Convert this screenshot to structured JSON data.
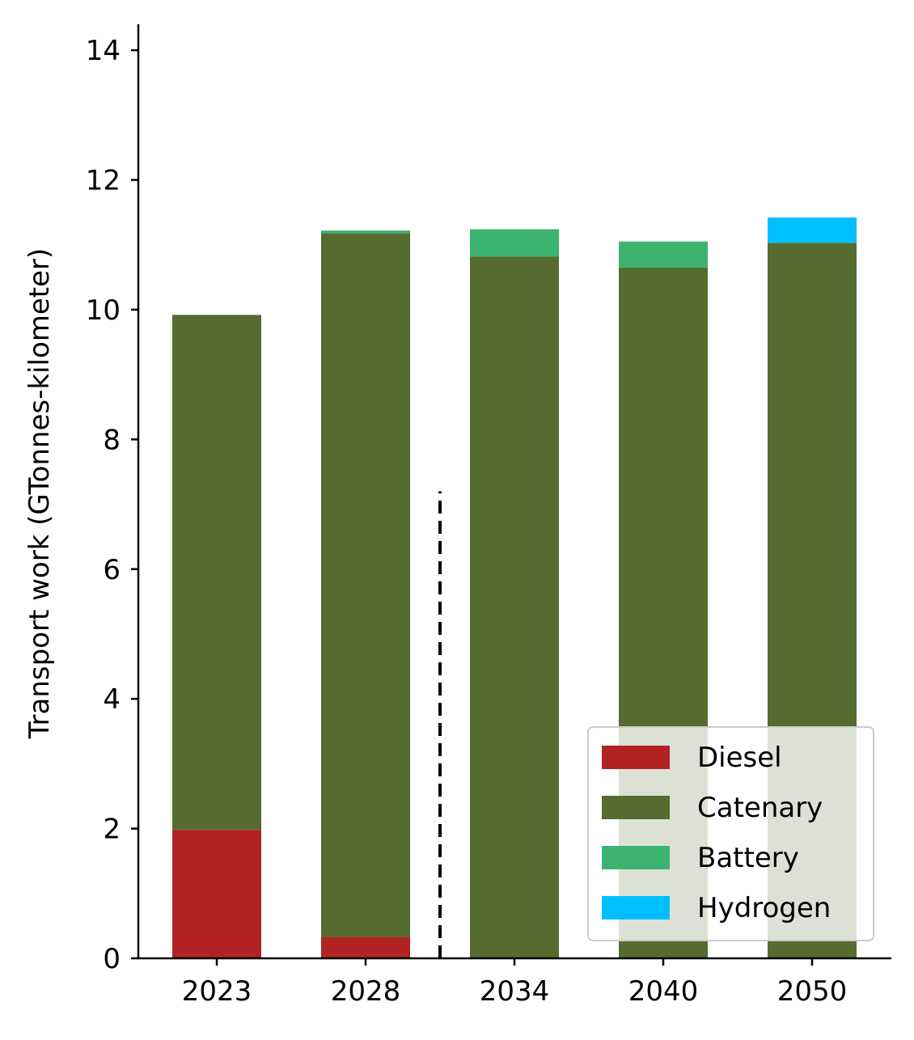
{
  "chart_data": {
    "type": "bar",
    "stacked": true,
    "categories": [
      "2023",
      "2028",
      "2034",
      "2040",
      "2050"
    ],
    "series": [
      {
        "name": "Diesel",
        "color": "#b22222",
        "values": [
          1.98,
          0.33,
          0.0,
          0.0,
          0.0
        ]
      },
      {
        "name": "Catenary",
        "color": "#556b2f",
        "values": [
          7.94,
          10.85,
          10.82,
          10.65,
          11.03
        ]
      },
      {
        "name": "Battery",
        "color": "#3cb371",
        "values": [
          0.0,
          0.04,
          0.42,
          0.4,
          0.0
        ]
      },
      {
        "name": "Hydrogen",
        "color": "#00bfff",
        "values": [
          0.0,
          0.0,
          0.0,
          0.0,
          0.39
        ]
      }
    ],
    "title": "",
    "xlabel": "",
    "ylabel": "Transport work (GTonnes-kilometer)",
    "ylim": [
      0,
      14.4
    ],
    "yticks": [
      "0",
      "2",
      "4",
      "6",
      "8",
      "10",
      "12",
      "14"
    ],
    "reference_line": {
      "style": "dashed",
      "color": "#000000",
      "between": [
        "2028",
        "2034"
      ],
      "y_top": 7.2
    },
    "grid": false,
    "legend_position": "lower right"
  }
}
